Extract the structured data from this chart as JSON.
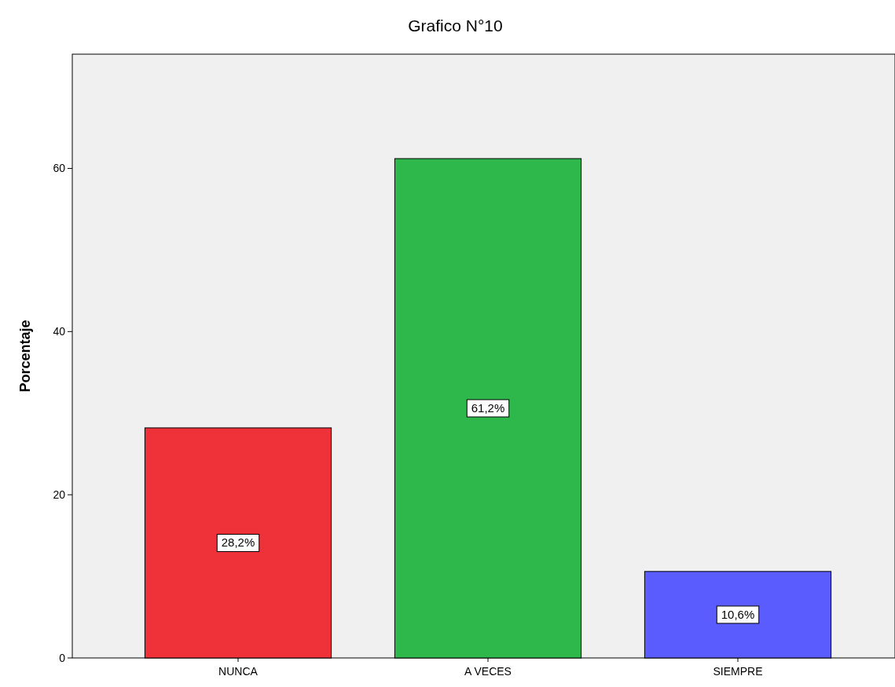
{
  "chart_data": {
    "type": "bar",
    "title": "Grafico N°10",
    "ylabel": "Porcentaje",
    "categories": [
      "NUNCA",
      "A VECES",
      "SIEMPRE"
    ],
    "values": [
      28.2,
      61.2,
      10.6
    ],
    "colors": [
      "#ef3139",
      "#2eb84b",
      "#5b5cfe"
    ],
    "value_labels": [
      "28,2%",
      "61,2%",
      "10,6%"
    ],
    "ylim": [
      0,
      74
    ],
    "yticks": [
      0,
      20,
      40,
      60
    ],
    "grid": false
  }
}
